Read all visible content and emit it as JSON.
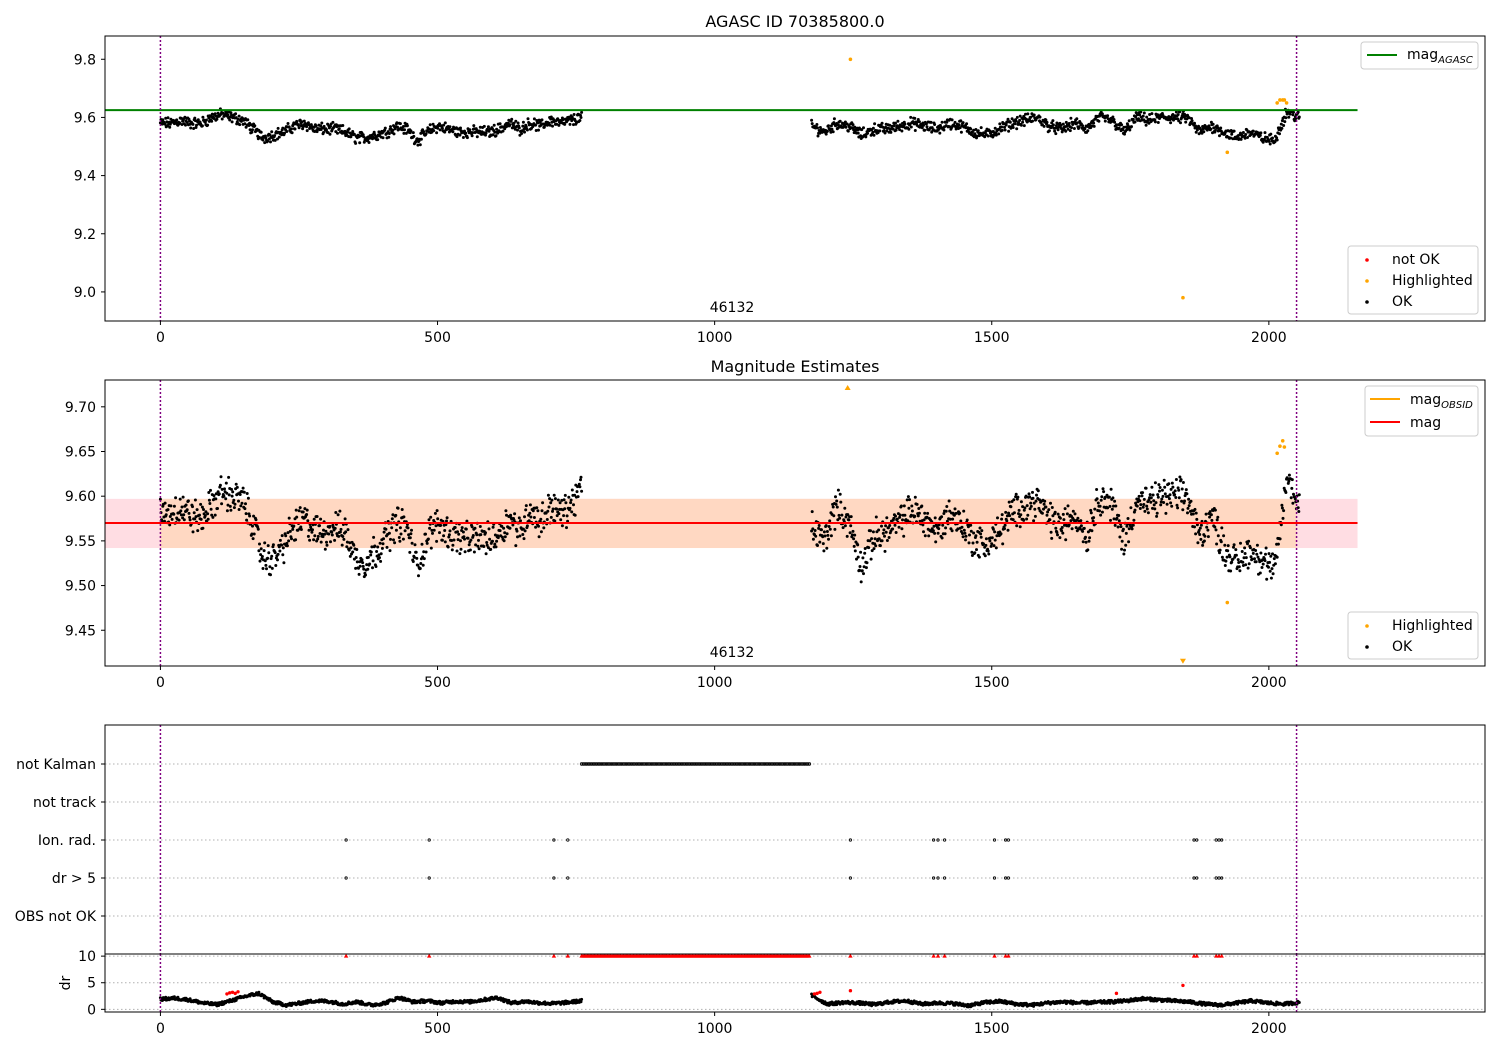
{
  "chart_data": [
    {
      "type": "scatter",
      "title": "AGASC ID 70385800.0",
      "annotation": "46132",
      "xlim": [
        -100,
        2390
      ],
      "ylim": [
        8.9,
        9.88
      ],
      "xticks": [
        0,
        500,
        1000,
        1500,
        2000
      ],
      "yticks": [
        9.0,
        9.2,
        9.4,
        9.6,
        9.8
      ],
      "vlines": [
        0,
        2050
      ],
      "hline": {
        "name": "mag_AGASC",
        "label_main": "mag",
        "label_sub": "AGASC",
        "y": 9.625,
        "x_range": [
          -100,
          2160
        ],
        "color": "#008000"
      },
      "scatter_legend": [
        {
          "name": "not OK",
          "color": "#ff0000"
        },
        {
          "name": "Highlighted",
          "color": "#ffa500"
        },
        {
          "name": "OK",
          "color": "#000000"
        }
      ],
      "ok_segments": [
        {
          "x0": 0,
          "x1": 760,
          "levels": [
            9.58,
            9.58,
            9.59,
            9.58,
            9.58,
            9.6,
            9.61,
            9.6,
            9.59,
            9.56,
            9.53,
            9.54,
            9.55,
            9.57,
            9.58,
            9.56,
            9.56,
            9.56,
            9.55,
            9.53,
            9.53,
            9.54,
            9.55,
            9.57,
            9.56,
            9.52,
            9.55,
            9.57,
            9.56,
            9.55,
            9.55,
            9.55,
            9.55,
            9.56,
            9.58,
            9.56,
            9.58,
            9.57,
            9.59,
            9.58,
            9.59,
            9.6
          ]
        },
        {
          "x0": 1175,
          "x1": 2055,
          "levels": [
            9.57,
            9.55,
            9.58,
            9.57,
            9.54,
            9.56,
            9.56,
            9.57,
            9.58,
            9.57,
            9.56,
            9.58,
            9.57,
            9.55,
            9.54,
            9.56,
            9.58,
            9.59,
            9.6,
            9.57,
            9.56,
            9.58,
            9.56,
            9.6,
            9.59,
            9.55,
            9.6,
            9.59,
            9.6,
            9.6,
            9.6,
            9.55,
            9.57,
            9.55,
            9.53,
            9.55,
            9.53,
            9.52,
            9.62,
            9.6
          ]
        }
      ],
      "highlighted_points": [
        {
          "x": 1245,
          "y": 9.8
        },
        {
          "x": 1925,
          "y": 9.48
        },
        {
          "x": 1845,
          "y": 8.98
        },
        {
          "x": 2015,
          "y": 9.65
        },
        {
          "x": 2020,
          "y": 9.66
        },
        {
          "x": 2025,
          "y": 9.66
        },
        {
          "x": 2028,
          "y": 9.66
        },
        {
          "x": 2032,
          "y": 9.65
        }
      ]
    },
    {
      "type": "scatter",
      "title": "Magnitude Estimates",
      "annotation": "46132",
      "xlim": [
        -100,
        2390
      ],
      "ylim": [
        9.41,
        9.73
      ],
      "xticks": [
        0,
        500,
        1000,
        1500,
        2000
      ],
      "yticks": [
        9.45,
        9.5,
        9.55,
        9.6,
        9.65,
        9.7
      ],
      "vlines": [
        0,
        2050
      ],
      "band_outer": {
        "y0": 9.542,
        "y1": 9.597,
        "x_range": [
          -100,
          2160
        ],
        "color": "#ffdde3"
      },
      "band_inner": {
        "y0": 9.542,
        "y1": 9.597,
        "x_range": [
          0,
          2050
        ],
        "color": "#ffd8c2"
      },
      "hline": {
        "name": "mag",
        "y": 9.57,
        "x_range": [
          -100,
          2160
        ],
        "color": "#ff0000"
      },
      "line_legend": [
        {
          "name": "mag_OBSID",
          "label_main": "mag",
          "label_sub": "OBSID",
          "color": "#ffa500"
        },
        {
          "name": "mag",
          "label_main": "mag",
          "color": "#ff0000"
        }
      ],
      "scatter_legend": [
        {
          "name": "Highlighted",
          "color": "#ffa500"
        },
        {
          "name": "OK",
          "color": "#000000"
        }
      ],
      "ok_segments": [
        {
          "x0": 0,
          "x1": 760,
          "levels": [
            9.58,
            9.582,
            9.588,
            9.578,
            9.575,
            9.59,
            9.605,
            9.6,
            9.595,
            9.57,
            9.53,
            9.53,
            9.545,
            9.565,
            9.575,
            9.56,
            9.56,
            9.565,
            9.56,
            9.53,
            9.525,
            9.54,
            9.555,
            9.57,
            9.565,
            9.52,
            9.555,
            9.57,
            9.56,
            9.555,
            9.55,
            9.555,
            9.55,
            9.56,
            9.575,
            9.56,
            9.585,
            9.57,
            9.59,
            9.58,
            9.59,
            9.61
          ]
        },
        {
          "x0": 1175,
          "x1": 2055,
          "levels": [
            9.565,
            9.55,
            9.59,
            9.57,
            9.52,
            9.555,
            9.56,
            9.57,
            9.585,
            9.575,
            9.56,
            9.58,
            9.57,
            9.55,
            9.545,
            9.56,
            9.58,
            9.59,
            9.595,
            9.575,
            9.565,
            9.58,
            9.555,
            9.6,
            9.59,
            9.55,
            9.595,
            9.59,
            9.6,
            9.6,
            9.6,
            9.555,
            9.58,
            9.54,
            9.525,
            9.54,
            9.53,
            9.515,
            9.62,
            9.59
          ]
        }
      ],
      "highlighted_points": [
        {
          "x": 1240,
          "y": 9.725,
          "marker": "^"
        },
        {
          "x": 1925,
          "y": 9.481
        },
        {
          "x": 1845,
          "y": 9.412,
          "marker": "v"
        },
        {
          "x": 2015,
          "y": 9.648
        },
        {
          "x": 2020,
          "y": 9.656
        },
        {
          "x": 2025,
          "y": 9.662
        },
        {
          "x": 2028,
          "y": 9.655
        }
      ]
    },
    {
      "type": "scatter",
      "title": "",
      "xlim": [
        -100,
        2390
      ],
      "xticks": [
        0,
        500,
        1000,
        1500,
        2000
      ],
      "vlines": [
        0,
        2050
      ],
      "flag_rows": [
        "not Kalman",
        "not track",
        "Ion. rad.",
        "dr > 5",
        "OBS not OK"
      ],
      "flags": {
        "not Kalman": {
          "ranges": [
            [
              760,
              1172
            ]
          ]
        },
        "not track": {
          "x": []
        },
        "Ion. rad.": {
          "x": [
            335,
            485,
            710,
            735,
            1245,
            1395,
            1403,
            1415,
            1505,
            1525,
            1530,
            1865,
            1870,
            1905,
            1910,
            1915
          ]
        },
        "dr > 5": {
          "x": [
            335,
            485,
            710,
            735,
            1245,
            1395,
            1403,
            1415,
            1505,
            1525,
            1530,
            1865,
            1870,
            1905,
            1910,
            1915
          ]
        },
        "OBS not OK": {
          "x": []
        }
      }
    },
    {
      "type": "scatter",
      "title": "",
      "ylabel": "dr",
      "xlim": [
        -100,
        2390
      ],
      "ylim": [
        -0.5,
        10.4
      ],
      "xticks": [
        0,
        500,
        1000,
        1500,
        2000
      ],
      "yticks": [
        0,
        5,
        10
      ],
      "vlines": [
        0,
        2050
      ],
      "clip_value": 10,
      "red_clipped_x": [
        335,
        485,
        710,
        735,
        1245,
        1395,
        1403,
        1415,
        1505,
        1525,
        1530,
        1865,
        1870,
        1905,
        1910,
        1915
      ],
      "red_clipped_range": [
        760,
        1172
      ],
      "dr_segments": [
        {
          "x0": 0,
          "x1": 760,
          "levels": [
            1.9,
            2.1,
            1.8,
            1.2,
            0.9,
            1.6,
            2.4,
            3.0,
            1.4,
            0.8,
            1.2,
            1.6,
            1.5,
            1.0,
            1.4,
            0.8,
            1.2,
            2.2,
            1.4,
            1.6,
            1.2,
            1.5,
            1.4,
            1.8,
            2.2,
            1.2,
            1.5,
            1.2,
            1.1,
            1.3,
            1.6
          ]
        },
        {
          "x0": 1175,
          "x1": 2055,
          "levels": [
            2.6,
            1.0,
            1.3,
            1.2,
            0.9,
            1.4,
            1.6,
            1.0,
            1.2,
            1.1,
            0.7,
            1.3,
            1.5,
            1.0,
            0.8,
            1.2,
            1.4,
            1.2,
            1.3,
            1.4,
            1.6,
            2.0,
            1.8,
            1.6,
            1.4,
            1.0,
            0.8,
            1.2,
            1.6,
            1.2,
            1.0,
            1.3
          ]
        }
      ],
      "red_points": [
        {
          "x": 120,
          "y": 2.9
        },
        {
          "x": 125,
          "y": 3.1
        },
        {
          "x": 130,
          "y": 3.2
        },
        {
          "x": 135,
          "y": 3.0
        },
        {
          "x": 140,
          "y": 3.3
        },
        {
          "x": 1180,
          "y": 2.9
        },
        {
          "x": 1185,
          "y": 3.0
        },
        {
          "x": 1190,
          "y": 3.2
        },
        {
          "x": 1245,
          "y": 3.5
        },
        {
          "x": 1725,
          "y": 3.0
        },
        {
          "x": 1845,
          "y": 4.5
        }
      ]
    }
  ]
}
